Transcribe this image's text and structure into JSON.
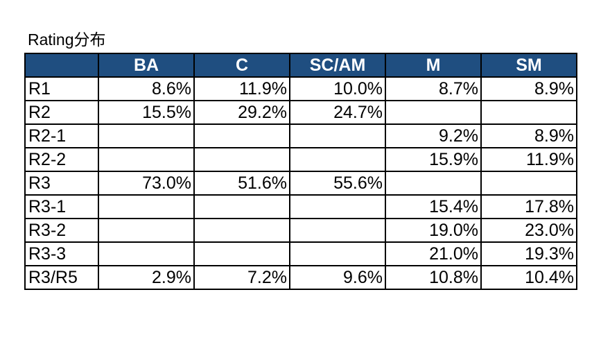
{
  "title": "Rating分布",
  "table": {
    "headers": [
      "",
      "BA",
      "C",
      "SC/AM",
      "M",
      "SM"
    ],
    "rows": [
      {
        "label": "R1",
        "values": [
          "8.6%",
          "11.9%",
          "10.0%",
          "8.7%",
          "8.9%"
        ]
      },
      {
        "label": "R2",
        "values": [
          "15.5%",
          "29.2%",
          "24.7%",
          "",
          ""
        ]
      },
      {
        "label": "R2-1",
        "values": [
          "",
          "",
          "",
          "9.2%",
          "8.9%"
        ]
      },
      {
        "label": "R2-2",
        "values": [
          "",
          "",
          "",
          "15.9%",
          "11.9%"
        ]
      },
      {
        "label": "R3",
        "values": [
          "73.0%",
          "51.6%",
          "55.6%",
          "",
          ""
        ]
      },
      {
        "label": "R3-1",
        "values": [
          "",
          "",
          "",
          "15.4%",
          "17.8%"
        ]
      },
      {
        "label": "R3-2",
        "values": [
          "",
          "",
          "",
          "19.0%",
          "23.0%"
        ]
      },
      {
        "label": "R3-3",
        "values": [
          "",
          "",
          "",
          "21.0%",
          "19.3%"
        ]
      },
      {
        "label": "R3/R5",
        "values": [
          "2.9%",
          "7.2%",
          "9.6%",
          "10.8%",
          "10.4%"
        ]
      }
    ]
  },
  "colors": {
    "header_bg": "#1f4e80",
    "header_text": "#ffffff",
    "border": "#000000"
  }
}
